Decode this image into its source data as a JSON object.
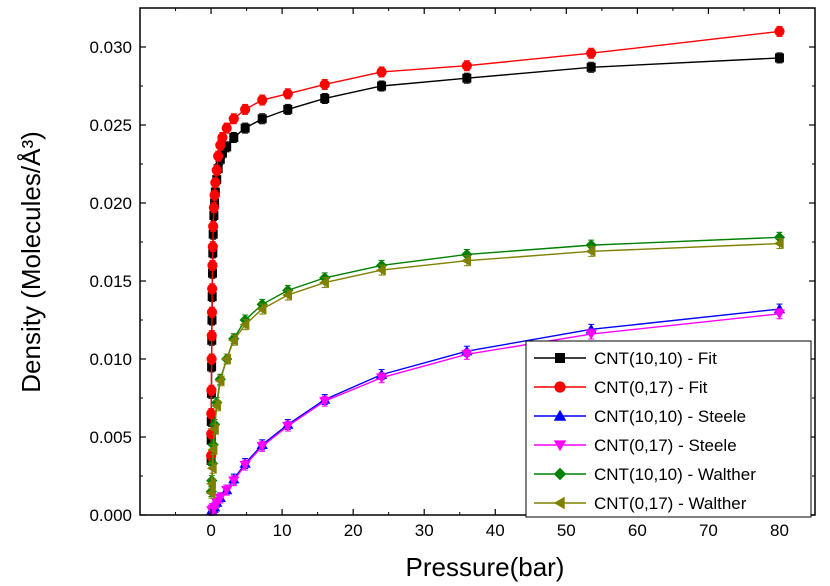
{
  "chart_data": {
    "type": "line",
    "xlabel": "Pressure(bar)",
    "ylabel": "Density  (Molecules/Å³)",
    "xlim": [
      -10,
      85
    ],
    "ylim": [
      0,
      0.0325
    ],
    "xticks": [
      0,
      10,
      20,
      30,
      40,
      50,
      60,
      70,
      80
    ],
    "yticks": [
      0.0,
      0.005,
      0.01,
      0.015,
      0.02,
      0.025,
      0.03
    ],
    "xtick_labels": [
      "0",
      "10",
      "20",
      "30",
      "40",
      "50",
      "60",
      "70",
      "80"
    ],
    "ytick_labels": [
      "0.000",
      "0.005",
      "0.010",
      "0.015",
      "0.020",
      "0.025",
      "0.030"
    ],
    "grid": false,
    "legend_position": "bottom-right",
    "error_bars": true,
    "series": [
      {
        "name": "CNT(10,10) - Fit",
        "color": "#000000",
        "marker": "square",
        "points": [
          [
            0.01,
            0.0035
          ],
          [
            0.02,
            0.0048
          ],
          [
            0.03,
            0.006
          ],
          [
            0.05,
            0.0078
          ],
          [
            0.08,
            0.0095
          ],
          [
            0.1,
            0.0112
          ],
          [
            0.13,
            0.0125
          ],
          [
            0.16,
            0.014
          ],
          [
            0.2,
            0.0155
          ],
          [
            0.25,
            0.0168
          ],
          [
            0.3,
            0.018
          ],
          [
            0.4,
            0.0192
          ],
          [
            0.5,
            0.02
          ],
          [
            0.6,
            0.0207
          ],
          [
            0.8,
            0.0215
          ],
          [
            1.0,
            0.0222
          ],
          [
            1.3,
            0.0228
          ],
          [
            1.6,
            0.0232
          ],
          [
            2.2,
            0.0236
          ],
          [
            3.2,
            0.0242
          ],
          [
            4.8,
            0.0248
          ],
          [
            7.2,
            0.0254
          ],
          [
            10.8,
            0.026
          ],
          [
            16,
            0.0267
          ],
          [
            24,
            0.0275
          ],
          [
            36,
            0.028
          ],
          [
            53.5,
            0.0287
          ],
          [
            80,
            0.0293
          ]
        ]
      },
      {
        "name": "CNT(0,17) - Fit",
        "color": "#ff0000",
        "marker": "circle",
        "points": [
          [
            0.01,
            0.0038
          ],
          [
            0.02,
            0.0052
          ],
          [
            0.03,
            0.0065
          ],
          [
            0.05,
            0.008
          ],
          [
            0.08,
            0.01
          ],
          [
            0.1,
            0.0115
          ],
          [
            0.13,
            0.013
          ],
          [
            0.16,
            0.0145
          ],
          [
            0.2,
            0.016
          ],
          [
            0.25,
            0.0172
          ],
          [
            0.3,
            0.0185
          ],
          [
            0.4,
            0.0197
          ],
          [
            0.5,
            0.0205
          ],
          [
            0.6,
            0.0213
          ],
          [
            0.8,
            0.0221
          ],
          [
            1.0,
            0.023
          ],
          [
            1.3,
            0.0237
          ],
          [
            1.6,
            0.0242
          ],
          [
            2.2,
            0.0248
          ],
          [
            3.2,
            0.0254
          ],
          [
            4.8,
            0.026
          ],
          [
            7.2,
            0.0266
          ],
          [
            10.8,
            0.027
          ],
          [
            16,
            0.0276
          ],
          [
            24,
            0.0284
          ],
          [
            36,
            0.0288
          ],
          [
            53.5,
            0.0296
          ],
          [
            80,
            0.031
          ]
        ]
      },
      {
        "name": "CNT(10,10) - Steele",
        "color": "#0000ff",
        "marker": "triangle-up",
        "points": [
          [
            0.1,
            0.0003
          ],
          [
            0.3,
            0.0004
          ],
          [
            0.5,
            0.0005
          ],
          [
            0.8,
            0.0008
          ],
          [
            1.3,
            0.0011
          ],
          [
            2.2,
            0.0016
          ],
          [
            3.2,
            0.0023
          ],
          [
            4.8,
            0.0033
          ],
          [
            7.2,
            0.0045
          ],
          [
            10.8,
            0.0058
          ],
          [
            16,
            0.0074
          ],
          [
            24,
            0.009
          ],
          [
            36,
            0.0105
          ],
          [
            53.5,
            0.0119
          ],
          [
            80,
            0.0132
          ]
        ]
      },
      {
        "name": "CNT(0,17) - Steele",
        "color": "#ff00ff",
        "marker": "triangle-down",
        "points": [
          [
            0.1,
            0.0003
          ],
          [
            0.3,
            0.0004
          ],
          [
            0.5,
            0.0005
          ],
          [
            0.8,
            0.0008
          ],
          [
            1.3,
            0.0011
          ],
          [
            2.2,
            0.0016
          ],
          [
            3.2,
            0.0022
          ],
          [
            4.8,
            0.0032
          ],
          [
            7.2,
            0.0044
          ],
          [
            10.8,
            0.0057
          ],
          [
            16,
            0.0073
          ],
          [
            24,
            0.0088
          ],
          [
            36,
            0.0103
          ],
          [
            53.5,
            0.0116
          ],
          [
            80,
            0.0129
          ]
        ]
      },
      {
        "name": "CNT(10,10) - Walther",
        "color": "#008000",
        "marker": "diamond",
        "points": [
          [
            0.05,
            0.0015
          ],
          [
            0.1,
            0.0022
          ],
          [
            0.2,
            0.0033
          ],
          [
            0.3,
            0.0045
          ],
          [
            0.5,
            0.0058
          ],
          [
            0.8,
            0.0072
          ],
          [
            1.3,
            0.0087
          ],
          [
            2.2,
            0.01
          ],
          [
            3.2,
            0.0113
          ],
          [
            4.8,
            0.0125
          ],
          [
            7.2,
            0.0135
          ],
          [
            10.8,
            0.0144
          ],
          [
            16,
            0.0152
          ],
          [
            24,
            0.016
          ],
          [
            36,
            0.0167
          ],
          [
            53.5,
            0.0173
          ],
          [
            80,
            0.0178
          ]
        ]
      },
      {
        "name": "CNT(0,17) - Walther",
        "color": "#808000",
        "marker": "triangle-left",
        "points": [
          [
            0.05,
            0.0014
          ],
          [
            0.1,
            0.002
          ],
          [
            0.2,
            0.003
          ],
          [
            0.3,
            0.0042
          ],
          [
            0.5,
            0.0055
          ],
          [
            0.8,
            0.007
          ],
          [
            1.3,
            0.0086
          ],
          [
            2.2,
            0.01
          ],
          [
            3.2,
            0.0112
          ],
          [
            4.8,
            0.0122
          ],
          [
            7.2,
            0.0132
          ],
          [
            10.8,
            0.0141
          ],
          [
            16,
            0.0149
          ],
          [
            24,
            0.0157
          ],
          [
            36,
            0.0163
          ],
          [
            53.5,
            0.0169
          ],
          [
            80,
            0.0174
          ]
        ]
      }
    ]
  }
}
